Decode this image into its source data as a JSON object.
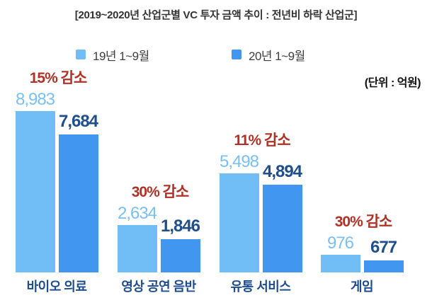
{
  "title": "[2019~2020년 산업군별 VC 투자 금액 추이 : 전년비 하락 산업군]",
  "unit_label": "(단위 : 억원)",
  "legend": {
    "items": [
      {
        "label": "19년 1~9월",
        "color": "#71BDF5"
      },
      {
        "label": "20년 1~9월",
        "color": "#4196F0"
      }
    ]
  },
  "colors": {
    "bar_2019": "#71BDF5",
    "bar_2020": "#4196F0",
    "value_2019_text": "#79BFF2",
    "value_2020_text": "#1E4E8C",
    "category_text": "#1D4C8F",
    "annotation_text": "#B03226",
    "title_text": "#333333"
  },
  "chart_data": {
    "type": "bar",
    "title": "[2019~2020년 산업군별 VC 투자 금액 추이 : 전년비 하락 산업군]",
    "unit": "억원",
    "categories": [
      "바이오 의료",
      "영상 공연 음반",
      "유통 서비스",
      "게임"
    ],
    "series": [
      {
        "name": "19년 1~9월",
        "values": [
          8983,
          2634,
          5498,
          976
        ],
        "values_display": [
          "8,983",
          "2,634",
          "5,498",
          "976"
        ]
      },
      {
        "name": "20년 1~9월",
        "values": [
          7684,
          1846,
          4894,
          677
        ],
        "values_display": [
          "7,684",
          "1,846",
          "4,894",
          "677"
        ]
      }
    ],
    "annotations": [
      "15% 감소",
      "30% 감소",
      "11% 감소",
      "30% 감소"
    ],
    "ylim": [
      0,
      9000
    ],
    "grid": false,
    "legend_position": "top",
    "axis_lines": "none"
  }
}
